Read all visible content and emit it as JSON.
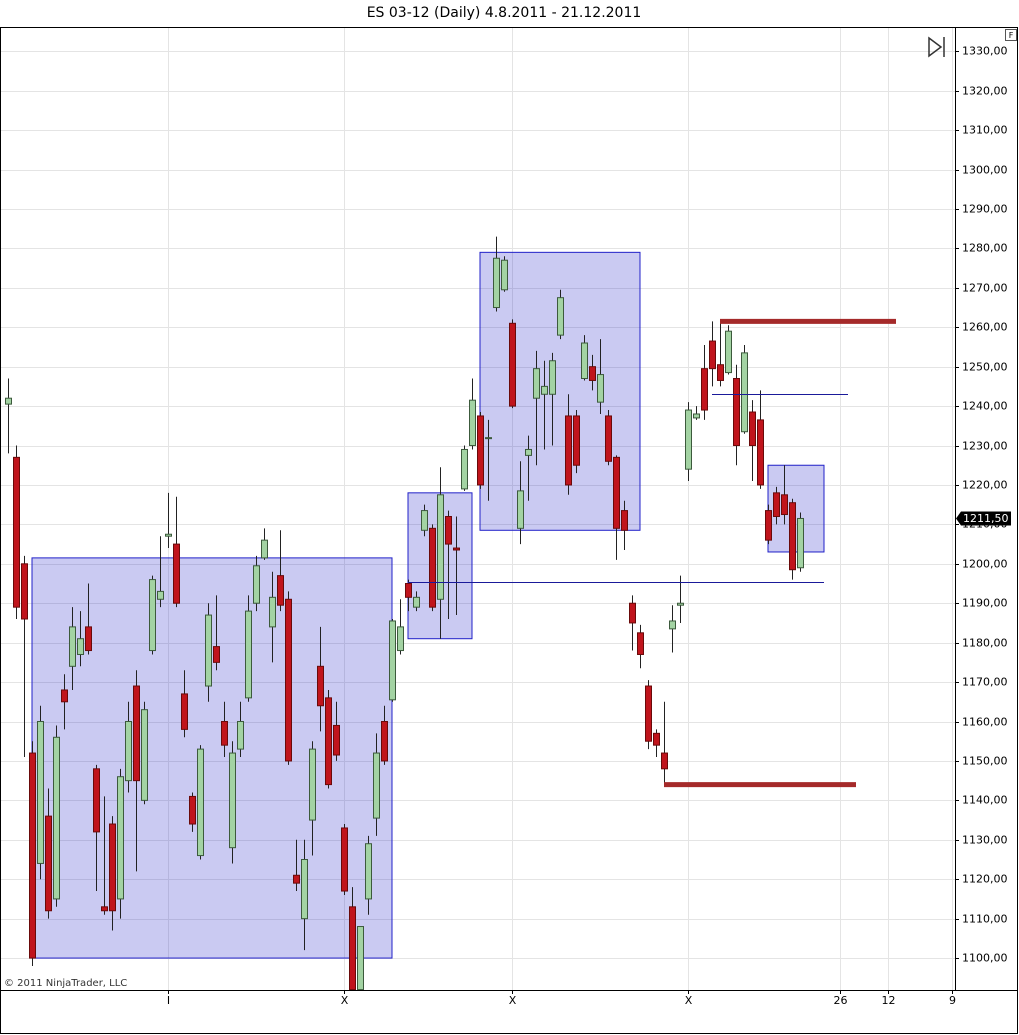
{
  "chart_data": {
    "type": "candlestick",
    "title": "ES 03-12 (Daily)  4.8.2011 - 21.12.2011",
    "copyright": "© 2011 NinjaTrader, LLC",
    "button_label": "F",
    "open": [
      1240.5,
      1227,
      1200,
      1152,
      1124,
      1136,
      1115,
      1168,
      1174,
      1177,
      1184,
      1148,
      1113,
      1134,
      1115,
      1145,
      1169,
      1140,
      1178,
      1191,
      1207,
      1205,
      1167,
      1141,
      1126,
      1169,
      1179,
      1160,
      1128,
      1153,
      1166,
      1190,
      1201.5,
      1184,
      1197,
      1191,
      1121,
      1110,
      1135,
      1174,
      1166,
      1159,
      1133,
      1113,
      1092,
      1115,
      1135.5,
      1160,
      1165.5,
      1178,
      1195,
      1189,
      1208.5,
      1209,
      1191,
      1212,
      1204,
      1219,
      1230,
      1237.5,
      1232,
      1265,
      1269.5,
      1261,
      1209,
      1227.5,
      1242,
      1243,
      1243,
      1258,
      1237.5,
      1237.5,
      1247,
      1250,
      1241,
      1237.5,
      1227,
      1213.5,
      1190,
      1182.5,
      1169,
      1157,
      1152,
      1183.5,
      1189.5,
      1224,
      1237,
      1249.5,
      1256.5,
      1250.5,
      1248.5,
      1247,
      1233.5,
      1238.5,
      1236.5,
      1213.5,
      1218,
      1217.5,
      1215.5,
      1199
    ],
    "high": [
      1247,
      1230,
      1202,
      1155,
      1164,
      1143,
      1159,
      1172,
      1189,
      1188,
      1195,
      1149,
      1141,
      1136,
      1148,
      1165,
      1173,
      1165,
      1197,
      1207,
      1218,
      1217,
      1173,
      1142,
      1154,
      1190,
      1192,
      1165,
      1155,
      1165,
      1192,
      1202,
      1209,
      1198,
      1208.5,
      1193,
      1130,
      1130,
      1155,
      1184,
      1168,
      1165,
      1134,
      1118,
      1108,
      1131,
      1157,
      1164,
      1186,
      1191,
      1196,
      1193,
      1215,
      1210,
      1224.5,
      1213.5,
      1212,
      1230,
      1247,
      1238.5,
      1236.5,
      1283,
      1278,
      1262,
      1226,
      1232.5,
      1254,
      1251.5,
      1253.5,
      1269.5,
      1243,
      1239,
      1258,
      1253,
      1257,
      1239,
      1227.5,
      1216,
      1192,
      1184.5,
      1170.5,
      1158,
      1165,
      1189.5,
      1197,
      1241,
      1240,
      1255.5,
      1261.5,
      1261,
      1260.5,
      1250.5,
      1255.5,
      1241.5,
      1244,
      1215,
      1219.5,
      1225,
      1216.5,
      1213
    ],
    "low": [
      1228,
      1186,
      1151,
      1098,
      1120,
      1110,
      1113,
      1158,
      1168,
      1174,
      1177,
      1117,
      1111,
      1107,
      1110,
      1142,
      1122,
      1139,
      1177,
      1189,
      1204,
      1189,
      1156,
      1132,
      1125,
      1165,
      1173,
      1151,
      1124,
      1151,
      1165,
      1188,
      1201,
      1175,
      1188,
      1149,
      1117,
      1102,
      1126,
      1157.5,
      1143,
      1150,
      1116,
      1090,
      1090,
      1111,
      1131,
      1149,
      1165,
      1177,
      1188,
      1188,
      1207,
      1188,
      1181,
      1186,
      1187,
      1218.5,
      1229,
      1219,
      1216,
      1264,
      1269,
      1239.5,
      1205,
      1216,
      1225,
      1229,
      1230,
      1257,
      1217.5,
      1223,
      1246.5,
      1244,
      1238,
      1225,
      1201,
      1203.5,
      1178,
      1173.5,
      1153,
      1151,
      1144,
      1177.5,
      1185,
      1221,
      1236.5,
      1236.5,
      1245,
      1245,
      1248,
      1225,
      1233,
      1221,
      1219,
      1205,
      1210,
      1210,
      1196,
      1198
    ],
    "close": [
      1242,
      1189,
      1186,
      1100,
      1160,
      1112,
      1156,
      1165,
      1184,
      1181,
      1178,
      1132,
      1112,
      1112,
      1146,
      1160,
      1145,
      1163,
      1196,
      1193,
      1207.5,
      1190,
      1158,
      1134,
      1153,
      1187,
      1175,
      1154,
      1152,
      1160,
      1188,
      1199.5,
      1206,
      1191.5,
      1189.5,
      1150,
      1119,
      1125,
      1153,
      1164,
      1144,
      1151.5,
      1117,
      1092,
      1108,
      1129,
      1152,
      1150,
      1185.5,
      1184,
      1191.5,
      1191.5,
      1213.5,
      1189,
      1217.5,
      1205,
      1203.5,
      1229,
      1241.5,
      1220,
      1232,
      1277.5,
      1277,
      1240,
      1218.5,
      1229,
      1249.5,
      1245,
      1251.5,
      1267.5,
      1220,
      1225,
      1256,
      1246.5,
      1248,
      1226,
      1209,
      1208.5,
      1185,
      1177,
      1155,
      1154,
      1148,
      1185.5,
      1190,
      1239,
      1238,
      1239,
      1249.5,
      1246.5,
      1259,
      1230,
      1253.5,
      1230,
      1220,
      1206,
      1212,
      1212.5,
      1198.5,
      1211.5
    ],
    "up_color": "#a3d3a3",
    "down_color": "#c0141c",
    "current_price": {
      "value": 1211.5,
      "label": "1211,50"
    },
    "xlim": [
      -0.875,
      118.375
    ],
    "xticks": [
      {
        "value": 20,
        "label": "I"
      },
      {
        "value": 42,
        "label": "X"
      },
      {
        "value": 63,
        "label": "X"
      },
      {
        "value": 85,
        "label": "X"
      },
      {
        "value": 104,
        "label": "26"
      },
      {
        "value": 110,
        "label": "12"
      },
      {
        "value": 118,
        "label": "9"
      }
    ],
    "ylim": [
      1091.9,
      1335.9
    ],
    "yticks": [
      {
        "value": 1100,
        "label": "1100,00"
      },
      {
        "value": 1110,
        "label": "1110,00"
      },
      {
        "value": 1120,
        "label": "1120,00"
      },
      {
        "value": 1130,
        "label": "1130,00"
      },
      {
        "value": 1140,
        "label": "1140,00"
      },
      {
        "value": 1150,
        "label": "1150,00"
      },
      {
        "value": 1160,
        "label": "1160,00"
      },
      {
        "value": 1170,
        "label": "1170,00"
      },
      {
        "value": 1180,
        "label": "1180,00"
      },
      {
        "value": 1190,
        "label": "1190,00"
      },
      {
        "value": 1200,
        "label": "1200,00"
      },
      {
        "value": 1210,
        "label": "1210,00"
      },
      {
        "value": 1220,
        "label": "1220,00"
      },
      {
        "value": 1230,
        "label": "1230,00"
      },
      {
        "value": 1240,
        "label": "1240,00"
      },
      {
        "value": 1250,
        "label": "1250,00"
      },
      {
        "value": 1260,
        "label": "1260,00"
      },
      {
        "value": 1270,
        "label": "1270,00"
      },
      {
        "value": 1280,
        "label": "1280,00"
      },
      {
        "value": 1290,
        "label": "1290,00"
      },
      {
        "value": 1300,
        "label": "1300,00"
      },
      {
        "value": 1310,
        "label": "1310,00"
      },
      {
        "value": 1320,
        "label": "1320,00"
      },
      {
        "value": 1330,
        "label": "1330,00"
      }
    ],
    "grid": true,
    "rectangle_color": "#2020c8",
    "rectangles": [
      {
        "x": [
          3,
          48
        ],
        "y": [
          1100,
          1201.5
        ]
      },
      {
        "x": [
          50,
          58
        ],
        "y": [
          1181,
          1218
        ]
      },
      {
        "x": [
          59,
          79
        ],
        "y": [
          1208.5,
          1279
        ]
      },
      {
        "x": [
          95,
          102
        ],
        "y": [
          1203,
          1225
        ]
      }
    ],
    "thick_line_color": "#a52a2a",
    "thick_lines": [
      {
        "x": [
          89,
          111
        ],
        "value": 1261.5
      },
      {
        "x": [
          82,
          106
        ],
        "value": 1144
      }
    ],
    "thin_line_color": "#1a1a9a",
    "thin_lines": [
      {
        "x": [
          88,
          105
        ],
        "value": 1243
      },
      {
        "x": [
          50,
          102
        ],
        "value": 1195.5
      }
    ]
  }
}
